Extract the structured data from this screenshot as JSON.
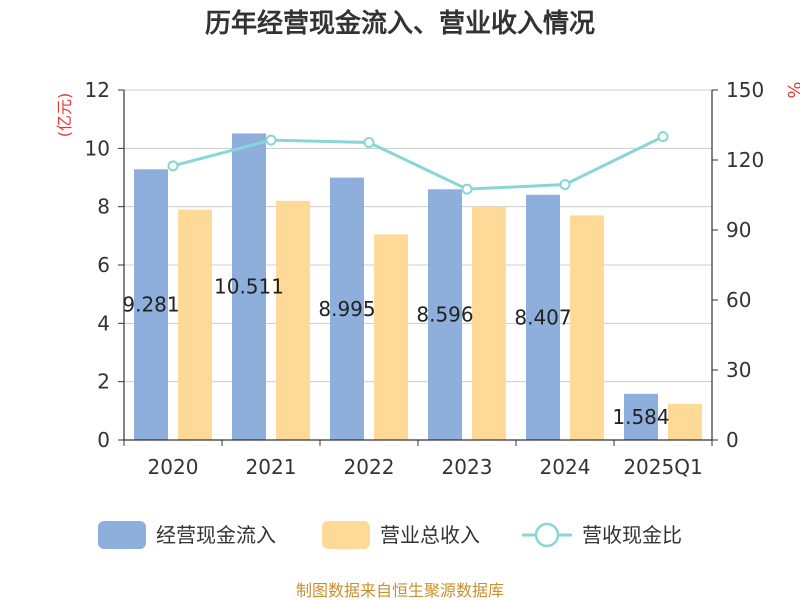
{
  "chart_data": {
    "type": "bar",
    "title": "历年经营现金流入、营业收入情况",
    "categories": [
      "2020",
      "2021",
      "2022",
      "2023",
      "2024",
      "2025Q1"
    ],
    "y_left": {
      "unit_label": "(亿元)",
      "ylim": [
        0,
        12
      ],
      "ticks": [
        "0",
        "2",
        "4",
        "6",
        "8",
        "10",
        "12"
      ]
    },
    "y_right": {
      "unit_label": "%",
      "ylim": [
        0,
        150
      ],
      "ticks": [
        "0",
        "30",
        "60",
        "90",
        "120",
        "150"
      ]
    },
    "grid": true,
    "legend_position": "bottom",
    "series": [
      {
        "name": "经营现金流入",
        "type": "bar",
        "axis": "left",
        "color": "#8eaedb",
        "values": [
          9.281,
          10.511,
          8.995,
          8.596,
          8.407,
          1.584
        ],
        "labels": [
          "9.281",
          "10.511",
          "8.995",
          "8.596",
          "8.407",
          "1.584"
        ]
      },
      {
        "name": "营业总收入",
        "type": "bar",
        "axis": "left",
        "color": "#ffd998",
        "values": [
          7.9,
          8.2,
          7.05,
          8.0,
          7.7,
          1.24
        ]
      },
      {
        "name": "营收现金比",
        "type": "line",
        "axis": "right",
        "color": "#88d6d6",
        "values": [
          117.5,
          128.5,
          127.5,
          107.5,
          109.5,
          130.0
        ]
      }
    ],
    "source": "制图数据来自恒生聚源数据库"
  },
  "colors": {
    "left_unit": "#e53935",
    "right_unit": "#e53935",
    "source_text": "#c8912d",
    "grid": "#cccccc",
    "axis": "#333333"
  }
}
